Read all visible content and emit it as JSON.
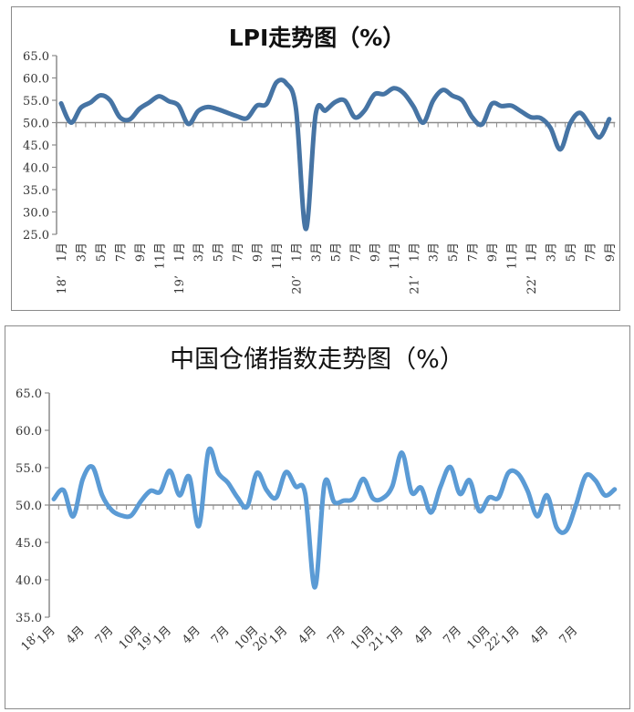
{
  "chart_data": [
    {
      "type": "line",
      "title": "LPI走势图（%）",
      "color": "#4674a4",
      "ylim": [
        25,
        65
      ],
      "yticks": [
        "65.0",
        "60.0",
        "55.0",
        "50.0",
        "45.0",
        "40.0",
        "35.0",
        "30.0",
        "25.0"
      ],
      "baseline": 50,
      "grid": false,
      "x": [
        "2018-01",
        "2018-02",
        "2018-03",
        "2018-04",
        "2018-05",
        "2018-06",
        "2018-07",
        "2018-08",
        "2018-09",
        "2018-10",
        "2018-11",
        "2018-12",
        "2019-01",
        "2019-02",
        "2019-03",
        "2019-04",
        "2019-05",
        "2019-06",
        "2019-07",
        "2019-08",
        "2019-09",
        "2019-10",
        "2019-11",
        "2019-12",
        "2020-01",
        "2020-02",
        "2020-03",
        "2020-04",
        "2020-05",
        "2020-06",
        "2020-07",
        "2020-08",
        "2020-09",
        "2020-10",
        "2020-11",
        "2020-12",
        "2021-01",
        "2021-02",
        "2021-03",
        "2021-04",
        "2021-05",
        "2021-06",
        "2021-07",
        "2021-08",
        "2021-09",
        "2021-10",
        "2021-11",
        "2021-12",
        "2022-01",
        "2022-02",
        "2022-03",
        "2022-04",
        "2022-05",
        "2022-06",
        "2022-07",
        "2022-08",
        "2022-09"
      ],
      "values": [
        54.3,
        50.0,
        53.3,
        54.5,
        56.1,
        55.0,
        51.2,
        50.7,
        53.1,
        54.5,
        55.9,
        54.8,
        53.8,
        49.7,
        52.6,
        53.5,
        53.0,
        52.2,
        51.4,
        51.0,
        53.8,
        54.2,
        59.0,
        58.8,
        53.0,
        26.2,
        51.8,
        52.7,
        54.6,
        54.9,
        51.2,
        52.7,
        56.3,
        56.4,
        57.7,
        56.6,
        53.6,
        50.0,
        54.9,
        57.3,
        56.0,
        54.9,
        51.2,
        49.6,
        54.2,
        53.7,
        53.8,
        52.5,
        51.2,
        51.0,
        48.8,
        44.0,
        49.8,
        52.2,
        49.5,
        46.7,
        50.8
      ],
      "xtick_labels": [
        {
          "i": 0,
          "label": "1月",
          "year": "18’"
        },
        {
          "i": 2,
          "label": "3月"
        },
        {
          "i": 4,
          "label": "5月"
        },
        {
          "i": 6,
          "label": "7月"
        },
        {
          "i": 8,
          "label": "9月"
        },
        {
          "i": 10,
          "label": "11月"
        },
        {
          "i": 12,
          "label": "1月",
          "year": "19’"
        },
        {
          "i": 14,
          "label": "3月"
        },
        {
          "i": 16,
          "label": "5月"
        },
        {
          "i": 18,
          "label": "7月"
        },
        {
          "i": 20,
          "label": "9月"
        },
        {
          "i": 22,
          "label": "11月"
        },
        {
          "i": 24,
          "label": "1月",
          "year": "20’"
        },
        {
          "i": 26,
          "label": "3月"
        },
        {
          "i": 28,
          "label": "5月"
        },
        {
          "i": 30,
          "label": "7月"
        },
        {
          "i": 32,
          "label": "9月"
        },
        {
          "i": 34,
          "label": "11月"
        },
        {
          "i": 36,
          "label": "1月",
          "year": "21’"
        },
        {
          "i": 38,
          "label": "3月"
        },
        {
          "i": 40,
          "label": "5月"
        },
        {
          "i": 42,
          "label": "7月"
        },
        {
          "i": 44,
          "label": "9月"
        },
        {
          "i": 46,
          "label": "11月"
        },
        {
          "i": 48,
          "label": "1月",
          "year": "22’"
        },
        {
          "i": 50,
          "label": "3月"
        },
        {
          "i": 52,
          "label": "5月"
        },
        {
          "i": 54,
          "label": "7月"
        },
        {
          "i": 56,
          "label": "9月"
        }
      ]
    },
    {
      "type": "line",
      "title": "中国仓储指数走势图（%）",
      "color": "#5b9bd5",
      "ylim": [
        35,
        65
      ],
      "yticks": [
        "65.0",
        "60.0",
        "55.0",
        "50.0",
        "45.0",
        "40.0",
        "35.0"
      ],
      "baseline": 50,
      "grid": false,
      "x": [
        "2018-01",
        "2018-02",
        "2018-03",
        "2018-04",
        "2018-05",
        "2018-06",
        "2018-07",
        "2018-08",
        "2018-09",
        "2018-10",
        "2018-11",
        "2018-12",
        "2019-01",
        "2019-02",
        "2019-03",
        "2019-04",
        "2019-05",
        "2019-06",
        "2019-07",
        "2019-08",
        "2019-09",
        "2019-10",
        "2019-11",
        "2019-12",
        "2020-01",
        "2020-02",
        "2020-03",
        "2020-04",
        "2020-05",
        "2020-06",
        "2020-07",
        "2020-08",
        "2020-09",
        "2020-10",
        "2020-11",
        "2020-12",
        "2021-01",
        "2021-02",
        "2021-03",
        "2021-04",
        "2021-05",
        "2021-06",
        "2021-07",
        "2021-08",
        "2021-09",
        "2021-10",
        "2021-11",
        "2021-12",
        "2022-01",
        "2022-02",
        "2022-03",
        "2022-04",
        "2022-05",
        "2022-06",
        "2022-07",
        "2022-08",
        "2022-09",
        "2022-10",
        "2022-11"
      ],
      "values": [
        50.8,
        52.0,
        48.5,
        53.5,
        55.1,
        51.3,
        49.3,
        48.6,
        48.6,
        50.5,
        51.9,
        51.8,
        54.6,
        51.3,
        53.8,
        47.2,
        57.3,
        54.3,
        53.0,
        51.0,
        49.8,
        54.3,
        52.0,
        51.0,
        54.4,
        52.5,
        51.5,
        39.0,
        52.9,
        50.4,
        50.6,
        50.9,
        53.5,
        50.9,
        50.9,
        52.5,
        57.0,
        51.7,
        52.3,
        49.0,
        52.5,
        55.1,
        51.5,
        53.3,
        49.2,
        51.0,
        51.0,
        54.3,
        54.2,
        51.9,
        48.5,
        51.3,
        47.0,
        46.6,
        50.0,
        53.9,
        53.3,
        51.3,
        52.1
      ],
      "xtick_labels": [
        {
          "i": 0,
          "label": "1月",
          "year": "18’"
        },
        {
          "i": 3,
          "label": "4月"
        },
        {
          "i": 6,
          "label": "7月"
        },
        {
          "i": 9,
          "label": "10月"
        },
        {
          "i": 12,
          "label": "1月",
          "year": "19’"
        },
        {
          "i": 15,
          "label": "4月"
        },
        {
          "i": 18,
          "label": "7月"
        },
        {
          "i": 21,
          "label": "10月"
        },
        {
          "i": 24,
          "label": "1月",
          "year": "20’"
        },
        {
          "i": 27,
          "label": "4月"
        },
        {
          "i": 30,
          "label": "7月"
        },
        {
          "i": 33,
          "label": "10月"
        },
        {
          "i": 36,
          "label": "1月",
          "year": "21’"
        },
        {
          "i": 39,
          "label": "4月"
        },
        {
          "i": 42,
          "label": "7月"
        },
        {
          "i": 45,
          "label": "10月"
        },
        {
          "i": 48,
          "label": "1月",
          "year": "22’"
        },
        {
          "i": 51,
          "label": "4月"
        },
        {
          "i": 54,
          "label": "7月"
        }
      ]
    }
  ]
}
